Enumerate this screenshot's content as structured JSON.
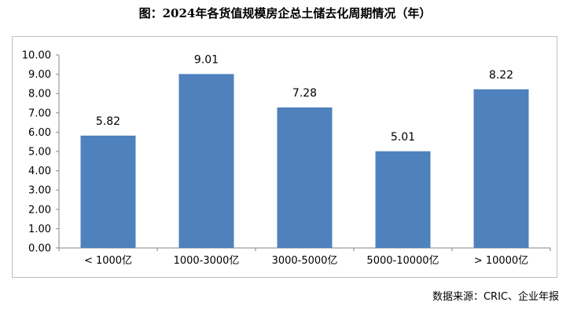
{
  "title": "图：2024年各货值规模房企总土储去化周期情况（年）",
  "source": "数据来源：CRIC、企业年报",
  "chart_data": {
    "type": "bar",
    "categories": [
      "< 1000亿",
      "1000-3000亿",
      "3000-5000亿",
      "5000-10000亿",
      "> 10000亿"
    ],
    "values": [
      5.82,
      9.01,
      7.28,
      5.01,
      8.22
    ],
    "value_labels": [
      "5.82",
      "9.01",
      "7.28",
      "5.01",
      "8.22"
    ],
    "ylim": [
      0,
      10
    ],
    "yticks": [
      "0.00",
      "1.00",
      "2.00",
      "3.00",
      "4.00",
      "5.00",
      "6.00",
      "7.00",
      "8.00",
      "9.00",
      "10.00"
    ],
    "grid": false,
    "bar_color": "#4f81bd",
    "xlabel": "",
    "ylabel": ""
  }
}
